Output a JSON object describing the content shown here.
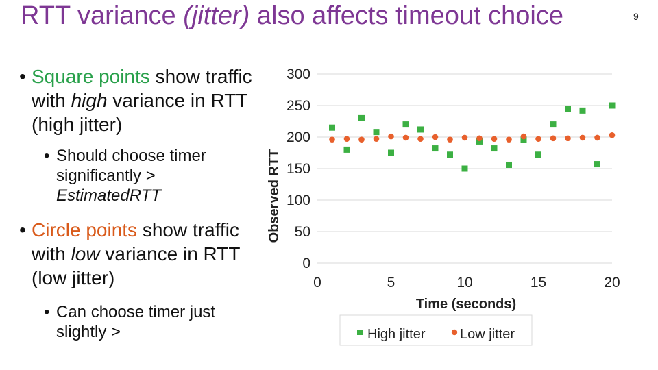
{
  "slide": {
    "title_part1": "RTT variance ",
    "title_italic": "(jitter)",
    "title_part2": " also affects timeout choice",
    "number": "9"
  },
  "bullets": {
    "square_colored": "Square points",
    "square_rest": " show traffic with ",
    "square_high": "high",
    "square_end": " variance in RTT (high jitter)",
    "square_sub_main": "Should choose timer significantly > ",
    "square_sub_italic": "EstimatedRTT",
    "circle_colored": "Circle points",
    "circle_rest": " show traffic with ",
    "circle_low": "low",
    "circle_end": " variance in RTT (low jitter)",
    "circle_sub": "Can choose timer just slightly >"
  },
  "chart_data": {
    "type": "scatter",
    "xlabel": "Time (seconds)",
    "ylabel": "Observed RTT",
    "xlim": [
      0,
      20
    ],
    "ylim": [
      0,
      300
    ],
    "xticks": [
      "0",
      "5",
      "10",
      "15",
      "20"
    ],
    "yticks": [
      "0",
      "50",
      "100",
      "150",
      "200",
      "250",
      "300"
    ],
    "grid": "horizontal",
    "legend_position": "bottom",
    "series": [
      {
        "name": "High jitter",
        "marker": "square",
        "color": "#3cb043",
        "x": [
          1,
          2,
          3,
          4,
          5,
          6,
          7,
          8,
          9,
          10,
          11,
          12,
          13,
          14,
          15,
          16,
          17,
          18,
          19,
          20
        ],
        "y": [
          215,
          180,
          230,
          208,
          175,
          220,
          212,
          182,
          172,
          150,
          193,
          182,
          156,
          196,
          172,
          220,
          245,
          242,
          157,
          250
        ]
      },
      {
        "name": "Low jitter",
        "marker": "circle",
        "color": "#e8602c",
        "x": [
          1,
          2,
          3,
          4,
          5,
          6,
          7,
          8,
          9,
          10,
          11,
          12,
          13,
          14,
          15,
          16,
          17,
          18,
          19,
          20
        ],
        "y": [
          196,
          197,
          196,
          197,
          201,
          199,
          197,
          200,
          196,
          199,
          198,
          197,
          196,
          201,
          197,
          198,
          198,
          199,
          199,
          203
        ]
      }
    ]
  }
}
